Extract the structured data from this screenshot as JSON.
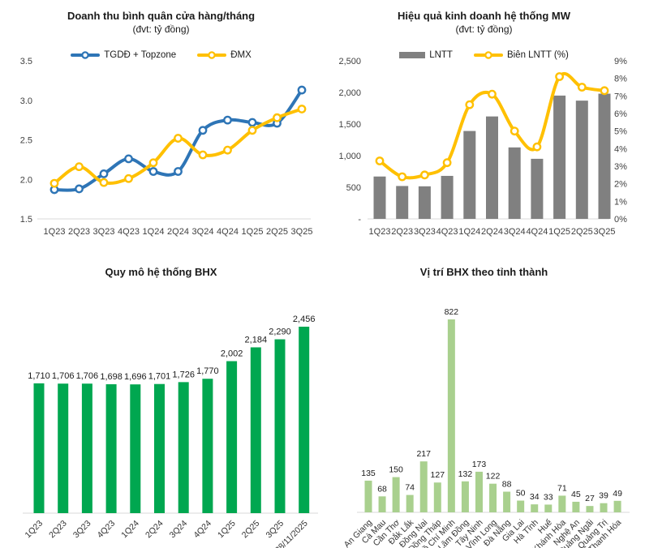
{
  "chart_data": [
    {
      "id": "revenue-per-store",
      "type": "line",
      "title": "Doanh thu bình quân cửa hàng/tháng",
      "subtitle": "(đvt: tỷ đồng)",
      "categories": [
        "1Q23",
        "2Q23",
        "3Q23",
        "4Q23",
        "1Q24",
        "2Q24",
        "3Q24",
        "4Q24",
        "1Q25",
        "2Q25",
        "3Q25"
      ],
      "series": [
        {
          "name": "TGDĐ + Topzone",
          "color": "#2E75B6",
          "values": [
            1.87,
            1.88,
            2.07,
            2.26,
            2.1,
            2.1,
            2.62,
            2.75,
            2.72,
            2.71,
            3.13
          ]
        },
        {
          "name": "ĐMX",
          "color": "#FFC000",
          "values": [
            1.95,
            2.16,
            1.96,
            2.01,
            2.21,
            2.52,
            2.31,
            2.37,
            2.62,
            2.78,
            2.89
          ]
        }
      ],
      "ylim": [
        1.5,
        3.5
      ],
      "yticks": [
        {
          "v": 3.5,
          "label": "3.5"
        },
        {
          "v": 3.0,
          "label": "3.0"
        },
        {
          "v": 2.5,
          "label": "2.5"
        },
        {
          "v": 2.0,
          "label": "2.0"
        },
        {
          "v": 1.5,
          "label": "1.5"
        }
      ],
      "legend_position": "top",
      "grid": false
    },
    {
      "id": "mw-performance",
      "type": "bar-line-combo",
      "title": "Hiệu quả kinh doanh hệ thống MW",
      "subtitle": "(đvt: tỷ đồng)",
      "categories": [
        "1Q23",
        "2Q23",
        "3Q23",
        "4Q23",
        "1Q24",
        "2Q24",
        "3Q24",
        "4Q24",
        "1Q25",
        "2Q25",
        "3Q25"
      ],
      "bar_series": {
        "name": "LNTT",
        "color": "#808080",
        "values": [
          670,
          520,
          515,
          680,
          1390,
          1620,
          1130,
          950,
          1950,
          1870,
          1980
        ]
      },
      "line_series": {
        "name": "Biên LNTT (%)",
        "color": "#FFC000",
        "values": [
          3.3,
          2.4,
          2.5,
          3.2,
          6.5,
          7.1,
          5.0,
          4.1,
          8.1,
          7.5,
          7.3
        ]
      },
      "ylim_left": [
        0,
        2500
      ],
      "left_ticks": [
        {
          "v": 2500,
          "label": "2,500"
        },
        {
          "v": 2000,
          "label": "2,000"
        },
        {
          "v": 1500,
          "label": "1,500"
        },
        {
          "v": 1000,
          "label": "1,000"
        },
        {
          "v": 500,
          "label": "500"
        },
        {
          "v": 0,
          "label": "-"
        }
      ],
      "ylim_right": [
        0,
        9
      ],
      "right_ticks": [
        {
          "v": 9,
          "label": "9%"
        },
        {
          "v": 8,
          "label": "8%"
        },
        {
          "v": 7,
          "label": "7%"
        },
        {
          "v": 6,
          "label": "6%"
        },
        {
          "v": 5,
          "label": "5%"
        },
        {
          "v": 4,
          "label": "4%"
        },
        {
          "v": 3,
          "label": "3%"
        },
        {
          "v": 2,
          "label": "2%"
        },
        {
          "v": 1,
          "label": "1%"
        },
        {
          "v": 0,
          "label": "0%"
        }
      ],
      "legend_position": "top",
      "grid": false
    },
    {
      "id": "bhx-scale",
      "type": "bar",
      "title": "Quy mô hệ thống BHX",
      "categories": [
        "1Q23",
        "2Q23",
        "3Q23",
        "4Q23",
        "1Q24",
        "2Q24",
        "3Q24",
        "4Q24",
        "1Q25",
        "2Q25",
        "3Q25",
        "28/11/2025"
      ],
      "values": [
        1710,
        1706,
        1706,
        1698,
        1696,
        1701,
        1726,
        1770,
        2002,
        2184,
        2290,
        2456
      ],
      "labels": [
        "1,710",
        "1,706",
        "1,706",
        "1,698",
        "1,696",
        "1,701",
        "1,726",
        "1,770",
        "2,002",
        "2,184",
        "2,290",
        "2,456"
      ],
      "color": "#00A750",
      "ylim": [
        0,
        2456
      ],
      "grid": false,
      "legend_position": "none"
    },
    {
      "id": "bhx-provinces",
      "type": "bar",
      "title": "Vị trí BHX theo tỉnh thành",
      "categories": [
        "An Giang",
        "Cà Mau",
        "Cần Thơ",
        "Đắk Lắk",
        "Đồng Nai",
        "Đồng Tháp",
        "Hồ Chí Minh",
        "Lâm Đồng",
        "Tây Ninh",
        "Vĩnh Long",
        "Đà Nẵng",
        "Gia Lai",
        "Hà Tĩnh",
        "Huế",
        "Khánh Hòa",
        "Nghệ An",
        "Quảng Ngãi",
        "Quảng Trị",
        "Thanh Hóa"
      ],
      "values": [
        135,
        68,
        150,
        74,
        217,
        127,
        822,
        132,
        173,
        122,
        88,
        50,
        34,
        33,
        71,
        45,
        27,
        39,
        49
      ],
      "labels": [
        "135",
        "68",
        "150",
        "74",
        "217",
        "127",
        "822",
        "132",
        "173",
        "122",
        "88",
        "50",
        "34",
        "33",
        "71",
        "45",
        "27",
        "39",
        "49"
      ],
      "color": "#A9D08E",
      "ylim": [
        0,
        822
      ],
      "grid": false,
      "legend_position": "none"
    }
  ]
}
